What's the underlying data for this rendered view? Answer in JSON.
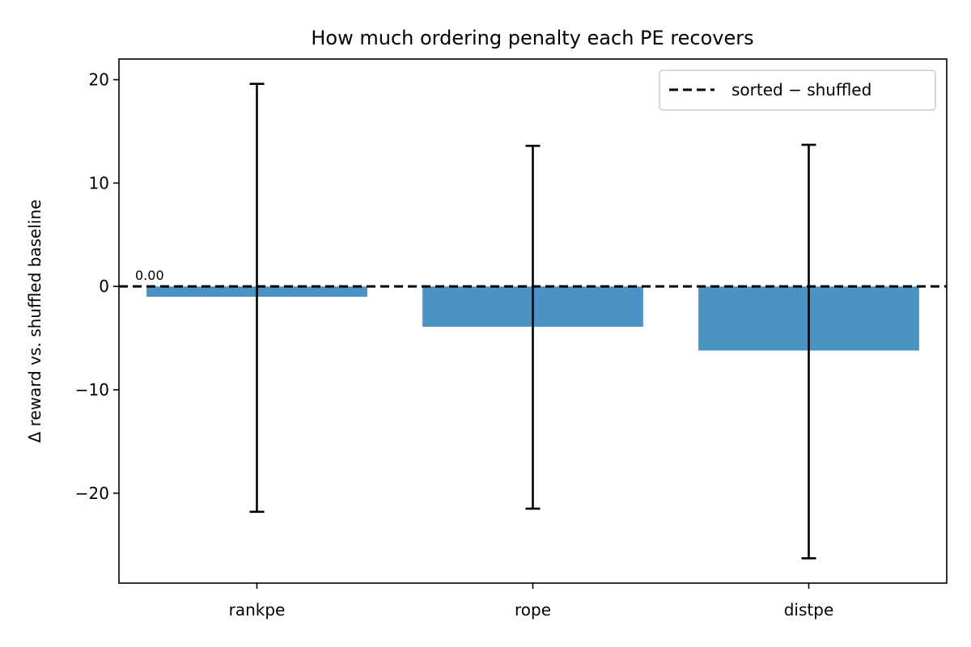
{
  "chart_data": {
    "type": "bar",
    "title": "How much ordering penalty each PE recovers",
    "xlabel": "",
    "ylabel": "Δ reward vs. shuffled baseline",
    "categories": [
      "rankpe",
      "rope",
      "distpe"
    ],
    "values": [
      -1.0,
      -3.9,
      -6.2
    ],
    "error_low": [
      -21.8,
      -21.5,
      -26.3
    ],
    "error_high": [
      19.6,
      13.6,
      13.7
    ],
    "ylim": [
      -28.7,
      22.0
    ],
    "yticks": [
      20,
      10,
      0,
      -10,
      -20
    ],
    "ytick_labels": [
      "20",
      "10",
      "0",
      "−10",
      "−20"
    ],
    "data_labels": [
      {
        "text": "0.00",
        "x": -0.5,
        "y": 0.0
      }
    ],
    "reference_line": {
      "y": 0,
      "style": "dashed",
      "label": "sorted − shuffled"
    },
    "bar_color": "#4c93c3",
    "errorbar_color": "#000000",
    "grid": false,
    "legend_position": "top-right"
  }
}
